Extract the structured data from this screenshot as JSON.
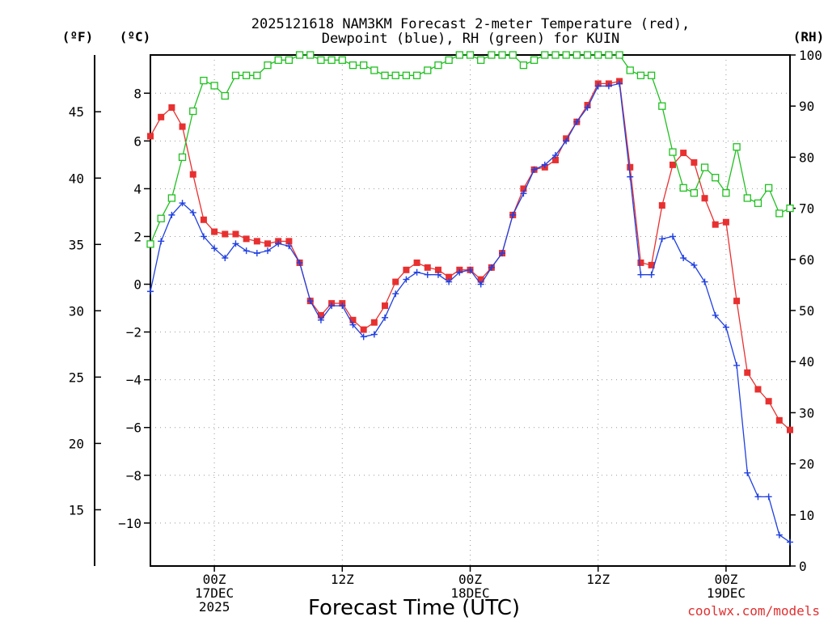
{
  "chart_data": {
    "type": "line",
    "title_line1": "2025121618 NAM3KM Forecast 2-meter Temperature (red),",
    "title_line2": "Dewpoint (blue), RH (green) for KUIN",
    "units": {
      "fahrenheit": "(ºF)",
      "celsius": "(ºC)",
      "rh": "(RH)"
    },
    "xlabel": "Forecast Time (UTC)",
    "credit": "coolwx.com/models",
    "x_ticks": [
      {
        "hour": 6,
        "label1": "00Z",
        "label2": "17DEC",
        "label3": "2025"
      },
      {
        "hour": 18,
        "label1": "12Z",
        "label2": "",
        "label3": ""
      },
      {
        "hour": 30,
        "label1": "00Z",
        "label2": "18DEC",
        "label3": ""
      },
      {
        "hour": 42,
        "label1": "12Z",
        "label2": "",
        "label3": ""
      },
      {
        "hour": 54,
        "label1": "00Z",
        "label2": "19DEC",
        "label3": ""
      }
    ],
    "x_range_hours": [
      0,
      60
    ],
    "celsius_range": [
      -11.8,
      9.6
    ],
    "celsius_ticks": [
      "8",
      "6",
      "4",
      "2",
      "0",
      "−2",
      "−4",
      "−6",
      "−8",
      "−10"
    ],
    "celsius_tick_values": [
      8,
      6,
      4,
      2,
      0,
      -2,
      -4,
      -6,
      -8,
      -10
    ],
    "fahrenheit_ticks": [
      "45",
      "40",
      "35",
      "30",
      "25",
      "20",
      "15"
    ],
    "fahrenheit_tick_values": [
      45,
      40,
      35,
      30,
      25,
      20,
      15
    ],
    "rh_range": [
      0,
      100
    ],
    "rh_ticks": [
      "100",
      "90",
      "80",
      "70",
      "60",
      "50",
      "40",
      "30",
      "20",
      "10",
      "0"
    ],
    "rh_tick_values": [
      100,
      90,
      80,
      70,
      60,
      50,
      40,
      30,
      20,
      10,
      0
    ],
    "series": [
      {
        "name": "Temperature",
        "color": "#e83030",
        "marker": "filled-square",
        "axis": "celsius",
        "points": [
          [
            0,
            6.2
          ],
          [
            1,
            7.0
          ],
          [
            2,
            7.4
          ],
          [
            3,
            6.6
          ],
          [
            4,
            4.6
          ],
          [
            5,
            2.7
          ],
          [
            6,
            2.2
          ],
          [
            7,
            2.1
          ],
          [
            8,
            2.1
          ],
          [
            9,
            1.9
          ],
          [
            10,
            1.8
          ],
          [
            11,
            1.7
          ],
          [
            12,
            1.8
          ],
          [
            13,
            1.8
          ],
          [
            14,
            0.9
          ],
          [
            15,
            -0.7
          ],
          [
            16,
            -1.3
          ],
          [
            17,
            -0.8
          ],
          [
            18,
            -0.8
          ],
          [
            19,
            -1.5
          ],
          [
            20,
            -1.9
          ],
          [
            21,
            -1.6
          ],
          [
            22,
            -0.9
          ],
          [
            23,
            0.1
          ],
          [
            24,
            0.6
          ],
          [
            25,
            0.9
          ],
          [
            26,
            0.7
          ],
          [
            27,
            0.6
          ],
          [
            28,
            0.3
          ],
          [
            29,
            0.6
          ],
          [
            30,
            0.6
          ],
          [
            31,
            0.2
          ],
          [
            32,
            0.7
          ],
          [
            33,
            1.3
          ],
          [
            34,
            2.9
          ],
          [
            35,
            4.0
          ],
          [
            36,
            4.8
          ],
          [
            37,
            4.9
          ],
          [
            38,
            5.2
          ],
          [
            39,
            6.1
          ],
          [
            40,
            6.8
          ],
          [
            41,
            7.5
          ],
          [
            42,
            8.4
          ],
          [
            43,
            8.4
          ],
          [
            44,
            8.5
          ],
          [
            45,
            4.9
          ],
          [
            46,
            0.9
          ],
          [
            47,
            0.8
          ],
          [
            48,
            3.3
          ],
          [
            49,
            5.0
          ],
          [
            50,
            5.5
          ],
          [
            51,
            5.1
          ],
          [
            52,
            3.6
          ],
          [
            53,
            2.5
          ],
          [
            54,
            2.6
          ],
          [
            55,
            -0.7
          ],
          [
            56,
            -3.7
          ],
          [
            57,
            -4.4
          ],
          [
            58,
            -4.9
          ],
          [
            59,
            -5.7
          ],
          [
            60,
            -6.1
          ]
        ]
      },
      {
        "name": "Dewpoint",
        "color": "#2040e0",
        "marker": "plus",
        "axis": "celsius",
        "points": [
          [
            0,
            -0.3
          ],
          [
            1,
            1.8
          ],
          [
            2,
            2.9
          ],
          [
            3,
            3.4
          ],
          [
            4,
            3.0
          ],
          [
            5,
            2.0
          ],
          [
            6,
            1.5
          ],
          [
            7,
            1.1
          ],
          [
            8,
            1.7
          ],
          [
            9,
            1.4
          ],
          [
            10,
            1.3
          ],
          [
            11,
            1.4
          ],
          [
            12,
            1.7
          ],
          [
            13,
            1.6
          ],
          [
            14,
            0.9
          ],
          [
            15,
            -0.7
          ],
          [
            16,
            -1.5
          ],
          [
            17,
            -0.9
          ],
          [
            18,
            -0.9
          ],
          [
            19,
            -1.7
          ],
          [
            20,
            -2.2
          ],
          [
            21,
            -2.1
          ],
          [
            22,
            -1.4
          ],
          [
            23,
            -0.4
          ],
          [
            24,
            0.2
          ],
          [
            25,
            0.5
          ],
          [
            26,
            0.4
          ],
          [
            27,
            0.4
          ],
          [
            28,
            0.1
          ],
          [
            29,
            0.5
          ],
          [
            30,
            0.6
          ],
          [
            31,
            0.0
          ],
          [
            32,
            0.7
          ],
          [
            33,
            1.3
          ],
          [
            34,
            2.9
          ],
          [
            35,
            3.8
          ],
          [
            36,
            4.8
          ],
          [
            37,
            5.0
          ],
          [
            38,
            5.4
          ],
          [
            39,
            6.0
          ],
          [
            40,
            6.8
          ],
          [
            41,
            7.4
          ],
          [
            42,
            8.3
          ],
          [
            43,
            8.3
          ],
          [
            44,
            8.4
          ],
          [
            45,
            4.5
          ],
          [
            46,
            0.4
          ],
          [
            47,
            0.4
          ],
          [
            48,
            1.9
          ],
          [
            49,
            2.0
          ],
          [
            50,
            1.1
          ],
          [
            51,
            0.8
          ],
          [
            52,
            0.1
          ],
          [
            53,
            -1.3
          ],
          [
            54,
            -1.8
          ],
          [
            55,
            -3.4
          ],
          [
            56,
            -7.9
          ],
          [
            57,
            -8.9
          ],
          [
            58,
            -8.9
          ],
          [
            59,
            -10.5
          ],
          [
            60,
            -10.8
          ]
        ]
      },
      {
        "name": "Relative Humidity",
        "color": "#20c020",
        "marker": "open-square",
        "axis": "rh",
        "points": [
          [
            0,
            63
          ],
          [
            1,
            68
          ],
          [
            2,
            72
          ],
          [
            3,
            80
          ],
          [
            4,
            89
          ],
          [
            5,
            95
          ],
          [
            6,
            94
          ],
          [
            7,
            92
          ],
          [
            8,
            96
          ],
          [
            9,
            96
          ],
          [
            10,
            96
          ],
          [
            11,
            98
          ],
          [
            12,
            99
          ],
          [
            13,
            99
          ],
          [
            14,
            100
          ],
          [
            15,
            100
          ],
          [
            16,
            99
          ],
          [
            17,
            99
          ],
          [
            18,
            99
          ],
          [
            19,
            98
          ],
          [
            20,
            98
          ],
          [
            21,
            97
          ],
          [
            22,
            96
          ],
          [
            23,
            96
          ],
          [
            24,
            96
          ],
          [
            25,
            96
          ],
          [
            26,
            97
          ],
          [
            27,
            98
          ],
          [
            28,
            99
          ],
          [
            29,
            100
          ],
          [
            30,
            100
          ],
          [
            31,
            99
          ],
          [
            32,
            100
          ],
          [
            33,
            100
          ],
          [
            34,
            100
          ],
          [
            35,
            98
          ],
          [
            36,
            99
          ],
          [
            37,
            100
          ],
          [
            38,
            100
          ],
          [
            39,
            100
          ],
          [
            40,
            100
          ],
          [
            41,
            100
          ],
          [
            42,
            100
          ],
          [
            43,
            100
          ],
          [
            44,
            100
          ],
          [
            45,
            97
          ],
          [
            46,
            96
          ],
          [
            47,
            96
          ],
          [
            48,
            90
          ],
          [
            49,
            81
          ],
          [
            50,
            74
          ],
          [
            51,
            73
          ],
          [
            52,
            78
          ],
          [
            53,
            76
          ],
          [
            54,
            73
          ],
          [
            55,
            82
          ],
          [
            56,
            72
          ],
          [
            57,
            71
          ],
          [
            58,
            74
          ],
          [
            59,
            69
          ],
          [
            60,
            70
          ]
        ]
      }
    ]
  }
}
